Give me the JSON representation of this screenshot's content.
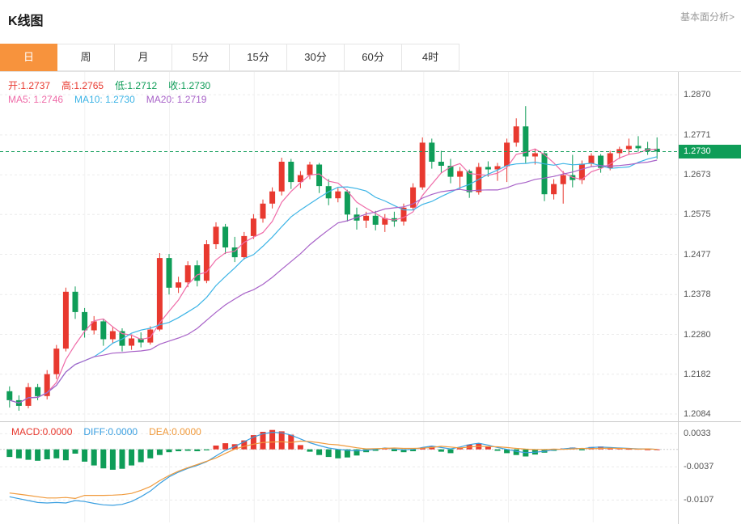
{
  "header": {
    "title": "K线图",
    "link": "基本面分析>"
  },
  "tabs": [
    {
      "label": "日",
      "active": true
    },
    {
      "label": "周",
      "active": false
    },
    {
      "label": "月",
      "active": false
    },
    {
      "label": "5分",
      "active": false
    },
    {
      "label": "15分",
      "active": false
    },
    {
      "label": "30分",
      "active": false
    },
    {
      "label": "60分",
      "active": false
    },
    {
      "label": "4时",
      "active": false
    }
  ],
  "colors": {
    "accent_tab": "#f7933d",
    "up": "#e8392f",
    "down": "#0f9d58",
    "badge": "#0f9d58",
    "ma5": "#ef6ba8",
    "ma10": "#3cb4e6",
    "ma20": "#a862c8",
    "diff": "#3a9fe0",
    "dea": "#f09a3c"
  },
  "legend": {
    "ohlc": [
      {
        "label": "开:",
        "value": "1.2737",
        "color": "#e8392f"
      },
      {
        "label": "高:",
        "value": "1.2765",
        "color": "#e8392f"
      },
      {
        "label": "低:",
        "value": "1.2712",
        "color": "#0f9d58"
      },
      {
        "label": "收:",
        "value": "1.2730",
        "color": "#0f9d58"
      }
    ],
    "ma": [
      {
        "label": "MA5: ",
        "value": "1.2746",
        "color": "#ef6ba8"
      },
      {
        "label": "MA10: ",
        "value": "1.2730",
        "color": "#3cb4e6"
      },
      {
        "label": "MA20: ",
        "value": "1.2719",
        "color": "#a862c8"
      }
    ],
    "macd": [
      {
        "label": "MACD:",
        "value": "0.0000",
        "color": "#e8392f"
      },
      {
        "label": "DIFF:",
        "value": "0.0000",
        "color": "#3a9fe0"
      },
      {
        "label": "DEA:",
        "value": "0.0000",
        "color": "#f09a3c"
      }
    ]
  },
  "axis": {
    "current_price_label": "1.2730"
  },
  "chart_data": {
    "type": "candlestick",
    "title": "K线图",
    "timeframe": "日",
    "current_price": 1.273,
    "ohlc_today": {
      "open": 1.2737,
      "high": 1.2765,
      "low": 1.2712,
      "close": 1.273
    },
    "ma_values": {
      "MA5": 1.2746,
      "MA10": 1.273,
      "MA20": 1.2719
    },
    "macd_values": {
      "MACD": 0.0,
      "DIFF": 0.0,
      "DEA": 0.0
    },
    "y_ticks": [
      1.287,
      1.2771,
      1.2673,
      1.2575,
      1.2477,
      1.2378,
      1.228,
      1.2182,
      1.2084
    ],
    "macd_ticks": [
      0.0033,
      -0.0037,
      -0.0107
    ],
    "price_range": {
      "top": 1.2926,
      "bottom": 1.2066
    },
    "macd_range": {
      "top": 0.00575,
      "bottom": -0.0154
    },
    "up_color": "#e8392f",
    "down_color": "#0f9d58",
    "grid": true,
    "legend_position": "top-left",
    "candles": [
      [
        1.214,
        1.2152,
        1.21,
        1.2118
      ],
      [
        1.2118,
        1.213,
        1.2092,
        1.2104
      ],
      [
        1.2104,
        1.216,
        1.2098,
        1.215
      ],
      [
        1.215,
        1.2158,
        1.2118,
        1.2128
      ],
      [
        1.2128,
        1.2192,
        1.212,
        1.2182
      ],
      [
        1.2182,
        1.2254,
        1.217,
        1.2245
      ],
      [
        1.2245,
        1.2395,
        1.2238,
        1.2385
      ],
      [
        1.2385,
        1.2398,
        1.2318,
        1.2335
      ],
      [
        1.2335,
        1.2345,
        1.2272,
        1.229
      ],
      [
        1.229,
        1.2325,
        1.228,
        1.2312
      ],
      [
        1.2312,
        1.2318,
        1.2252,
        1.2268
      ],
      [
        1.2268,
        1.23,
        1.2258,
        1.2288
      ],
      [
        1.2288,
        1.2295,
        1.2238,
        1.2252
      ],
      [
        1.2252,
        1.228,
        1.2242,
        1.227
      ],
      [
        1.227,
        1.2285,
        1.2248,
        1.226
      ],
      [
        1.226,
        1.23,
        1.2255,
        1.2292
      ],
      [
        1.2292,
        1.248,
        1.2288,
        1.2468
      ],
      [
        1.2468,
        1.2478,
        1.2378,
        1.2395
      ],
      [
        1.2395,
        1.2422,
        1.2382,
        1.2408
      ],
      [
        1.2408,
        1.246,
        1.2396,
        1.245
      ],
      [
        1.245,
        1.2462,
        1.2398,
        1.2412
      ],
      [
        1.2412,
        1.2512,
        1.2406,
        1.2502
      ],
      [
        1.2502,
        1.2556,
        1.249,
        1.2545
      ],
      [
        1.2545,
        1.2552,
        1.2478,
        1.2494
      ],
      [
        1.2494,
        1.252,
        1.2458,
        1.247
      ],
      [
        1.247,
        1.2532,
        1.2464,
        1.2522
      ],
      [
        1.2522,
        1.2576,
        1.2515,
        1.2565
      ],
      [
        1.2565,
        1.2612,
        1.2555,
        1.2602
      ],
      [
        1.2602,
        1.2642,
        1.259,
        1.2632
      ],
      [
        1.2632,
        1.2715,
        1.2622,
        1.2705
      ],
      [
        1.2705,
        1.2712,
        1.2638,
        1.2655
      ],
      [
        1.2655,
        1.2682,
        1.264,
        1.2672
      ],
      [
        1.2672,
        1.2705,
        1.2662,
        1.2698
      ],
      [
        1.2698,
        1.2702,
        1.2628,
        1.2645
      ],
      [
        1.2645,
        1.2662,
        1.2598,
        1.2615
      ],
      [
        1.2615,
        1.264,
        1.2605,
        1.2632
      ],
      [
        1.2632,
        1.2636,
        1.2558,
        1.2575
      ],
      [
        1.2575,
        1.2592,
        1.2538,
        1.256
      ],
      [
        1.256,
        1.2582,
        1.2542,
        1.2572
      ],
      [
        1.2572,
        1.2584,
        1.2536,
        1.255
      ],
      [
        1.255,
        1.2576,
        1.2532,
        1.2566
      ],
      [
        1.2566,
        1.2582,
        1.2545,
        1.2558
      ],
      [
        1.2558,
        1.2602,
        1.2548,
        1.2592
      ],
      [
        1.2592,
        1.2652,
        1.2586,
        1.2642
      ],
      [
        1.2642,
        1.2765,
        1.2636,
        1.2752
      ],
      [
        1.2752,
        1.2762,
        1.2688,
        1.2705
      ],
      [
        1.2705,
        1.2732,
        1.2678,
        1.2695
      ],
      [
        1.2695,
        1.2712,
        1.2652,
        1.2668
      ],
      [
        1.2668,
        1.2692,
        1.2638,
        1.2682
      ],
      [
        1.2682,
        1.2686,
        1.2616,
        1.263
      ],
      [
        1.263,
        1.2702,
        1.2624,
        1.2692
      ],
      [
        1.2692,
        1.2706,
        1.2668,
        1.2686
      ],
      [
        1.2686,
        1.2702,
        1.2658,
        1.2694
      ],
      [
        1.2694,
        1.2762,
        1.2655,
        1.2752
      ],
      [
        1.2752,
        1.2812,
        1.2742,
        1.2792
      ],
      [
        1.2792,
        1.2842,
        1.2702,
        1.2718
      ],
      [
        1.2718,
        1.2736,
        1.2698,
        1.2726
      ],
      [
        1.2726,
        1.2732,
        1.2608,
        1.2625
      ],
      [
        1.2625,
        1.2662,
        1.2612,
        1.265
      ],
      [
        1.265,
        1.2682,
        1.2602,
        1.2672
      ],
      [
        1.2672,
        1.2722,
        1.2642,
        1.266
      ],
      [
        1.266,
        1.2708,
        1.265,
        1.27
      ],
      [
        1.27,
        1.2726,
        1.2692,
        1.272
      ],
      [
        1.272,
        1.2724,
        1.2678,
        1.269
      ],
      [
        1.269,
        1.2732,
        1.2684,
        1.2726
      ],
      [
        1.2726,
        1.2742,
        1.2712,
        1.2736
      ],
      [
        1.2736,
        1.2762,
        1.2724,
        1.2744
      ],
      [
        1.2744,
        1.2768,
        1.273,
        1.2738
      ],
      [
        1.2738,
        1.2754,
        1.2722,
        1.273
      ],
      [
        1.2737,
        1.2765,
        1.2712,
        1.273
      ]
    ],
    "macd": {
      "hist": [
        -0.0016,
        -0.0019,
        -0.0022,
        -0.0024,
        -0.0021,
        -0.0019,
        -0.0023,
        -0.0009,
        -0.0026,
        -0.0034,
        -0.004,
        -0.0043,
        -0.0041,
        -0.0034,
        -0.0027,
        -0.0019,
        -0.0012,
        -0.0006,
        -0.0004,
        -0.0003,
        -0.0004,
        -0.0002,
        0.0008,
        0.0013,
        0.0011,
        0.0019,
        0.003,
        0.0037,
        0.0041,
        0.0038,
        0.0031,
        0.0009,
        -0.0005,
        -0.0012,
        -0.0016,
        -0.0019,
        -0.0017,
        -0.0013,
        -0.0006,
        -0.0003,
        0.0002,
        -0.0004,
        -0.0006,
        -0.0004,
        0.0003,
        0.0006,
        -0.0005,
        -0.0008,
        0.0004,
        0.001,
        0.0013,
        0.0006,
        -0.0003,
        -0.0008,
        -0.0012,
        -0.0015,
        -0.0011,
        -0.0007,
        -0.0003,
        0.0002,
        0.0004,
        -0.0002,
        0.0005,
        0.0006,
        0.0003,
        0.0002,
        0.0001,
        0.0001,
        0.0,
        0.0
      ],
      "diff": [
        -0.01,
        -0.0104,
        -0.0108,
        -0.0112,
        -0.0113,
        -0.0112,
        -0.0113,
        -0.0108,
        -0.011,
        -0.0114,
        -0.0117,
        -0.0118,
        -0.0116,
        -0.011,
        -0.01,
        -0.0088,
        -0.0072,
        -0.0058,
        -0.0048,
        -0.004,
        -0.0034,
        -0.0026,
        -0.0014,
        -0.0002,
        0.0006,
        0.0016,
        0.0026,
        0.0033,
        0.0036,
        0.0035,
        0.003,
        0.0022,
        0.0014,
        0.0008,
        0.0003,
        0.0,
        -0.0002,
        -0.0003,
        -0.0002,
        0.0,
        0.0003,
        0.0001,
        -0.0001,
        0.0,
        0.0004,
        0.0007,
        0.0004,
        0.0001,
        0.0005,
        0.001,
        0.0013,
        0.0009,
        0.0004,
        0.0,
        -0.0004,
        -0.0007,
        -0.0006,
        -0.0004,
        -0.0001,
        0.0001,
        0.0003,
        0.0001,
        0.0004,
        0.0005,
        0.0004,
        0.0003,
        0.0002,
        0.0001,
        0.0001,
        0.0
      ]
    }
  }
}
